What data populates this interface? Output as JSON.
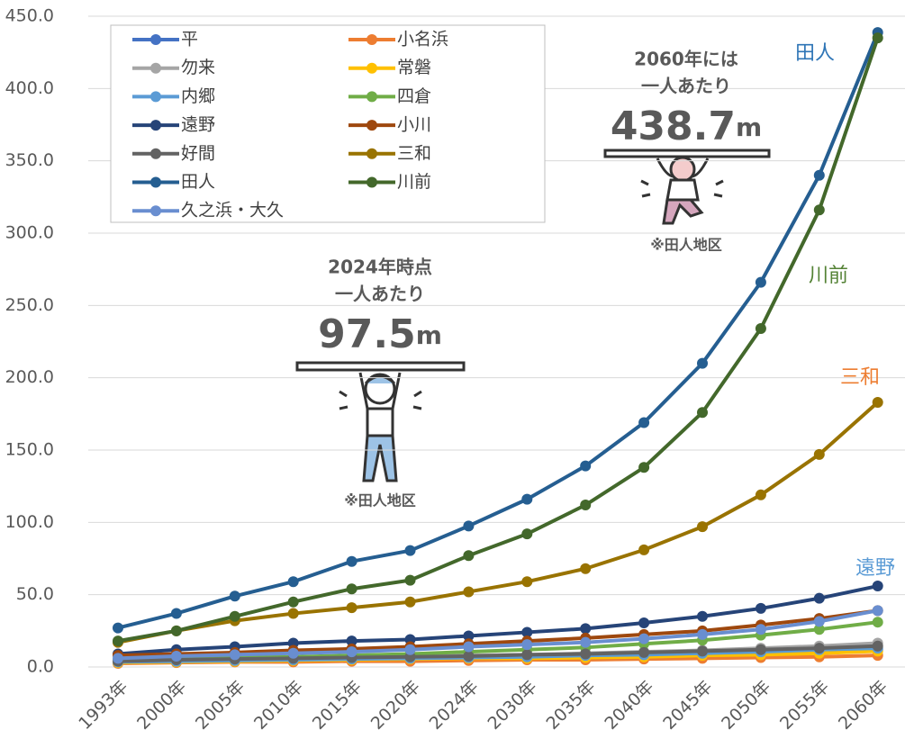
{
  "chart_data": {
    "type": "line",
    "categories": [
      "1993年",
      "2000年",
      "2005年",
      "2010年",
      "2015年",
      "2020年",
      "2024年",
      "2030年",
      "2035年",
      "2040年",
      "2045年",
      "2050年",
      "2055年",
      "2060年"
    ],
    "ylim": [
      0,
      450
    ],
    "yticks": [
      {
        "value": 0,
        "label": "0.0"
      },
      {
        "value": 50,
        "label": "50.0"
      },
      {
        "value": 100,
        "label": "100.0"
      },
      {
        "value": 150,
        "label": "150.0"
      },
      {
        "value": 200,
        "label": "200.0"
      },
      {
        "value": 250,
        "label": "250.0"
      },
      {
        "value": 300,
        "label": "300.0"
      },
      {
        "value": 350,
        "label": "350.0"
      },
      {
        "value": 400,
        "label": "400.0"
      },
      {
        "value": 450,
        "label": "450.0"
      }
    ],
    "grid": true,
    "legend": "top-left",
    "series": [
      {
        "name": "平",
        "color": "#4472c4",
        "values": [
          3,
          4,
          4.5,
          5,
          5,
          5.5,
          6,
          6.5,
          7,
          8,
          8.5,
          9.5,
          10.5,
          12
        ]
      },
      {
        "name": "小名浜",
        "color": "#ed7d31",
        "values": [
          2.5,
          3,
          3.5,
          3.5,
          4,
          4,
          4.5,
          5,
          5,
          5.5,
          6,
          6.5,
          7,
          8
        ]
      },
      {
        "name": "勿来",
        "color": "#a5a5a5",
        "values": [
          4.5,
          5,
          5.5,
          6,
          6.5,
          7,
          8,
          8.5,
          9.5,
          10.5,
          11.5,
          13,
          14.5,
          16.5
        ]
      },
      {
        "name": "常磐",
        "color": "#ffc000",
        "values": [
          3,
          3.5,
          4,
          4.5,
          5,
          5.5,
          6,
          6,
          6.5,
          7,
          8,
          8.5,
          9.5,
          11
        ]
      },
      {
        "name": "内郷",
        "color": "#5b9bd5",
        "values": [
          3.5,
          4,
          4.5,
          5,
          5.5,
          6,
          6.5,
          7,
          8,
          8.5,
          9.5,
          10.5,
          12,
          13
        ]
      },
      {
        "name": "四倉",
        "color": "#70ad47",
        "values": [
          5,
          6,
          6.5,
          7,
          8,
          9,
          10.5,
          12,
          13.5,
          16,
          18.5,
          22,
          26,
          31
        ]
      },
      {
        "name": "遠野",
        "color": "#264478",
        "values": [
          9,
          12,
          14,
          16.5,
          18,
          19,
          21.5,
          24,
          26.5,
          30.5,
          35,
          40.5,
          47.5,
          56
        ]
      },
      {
        "name": "小川",
        "color": "#9e480e",
        "values": [
          8,
          9,
          10,
          11.5,
          12.5,
          14,
          16,
          18,
          20,
          22.5,
          25,
          29,
          33.5,
          39
        ]
      },
      {
        "name": "好間",
        "color": "#636363",
        "values": [
          4,
          5,
          5.5,
          6,
          6.5,
          7,
          7.5,
          8.5,
          9,
          10,
          11,
          12,
          13,
          14.5
        ]
      },
      {
        "name": "三和",
        "color": "#997300",
        "values": [
          17,
          25,
          32,
          37,
          41,
          45,
          52,
          59,
          68,
          81,
          97,
          119,
          147,
          183
        ]
      },
      {
        "name": "田人",
        "color": "#255e91",
        "values": [
          27,
          37,
          49,
          59,
          73,
          80.5,
          97.5,
          116,
          139,
          169,
          210,
          266,
          340,
          438.7
        ]
      },
      {
        "name": "川前",
        "color": "#43682b",
        "values": [
          18,
          25,
          35,
          45,
          54,
          60,
          77,
          92,
          112,
          138,
          176,
          234,
          316,
          435
        ]
      },
      {
        "name": "久之浜・大久",
        "color": "#698ed0",
        "values": [
          6,
          7.5,
          8.5,
          9.5,
          10.5,
          12,
          14,
          15.5,
          17,
          19.5,
          22.5,
          26,
          31.5,
          39
        ]
      }
    ],
    "end_labels": [
      {
        "text": "田人",
        "color": "#2e75b6"
      },
      {
        "text": "川前",
        "color": "#548235"
      },
      {
        "text": "三和",
        "color": "#ed7d31"
      },
      {
        "text": "遠野",
        "color": "#5b9bd5"
      }
    ],
    "callouts": [
      {
        "line1": "2024年時点",
        "line2": "一人あたり",
        "value": "97.5",
        "unit": "m",
        "note": "※田人地区"
      },
      {
        "line1": "2060年には",
        "line2": "一人あたり",
        "value": "438.7",
        "unit": "m",
        "note": "※田人地区"
      }
    ]
  }
}
